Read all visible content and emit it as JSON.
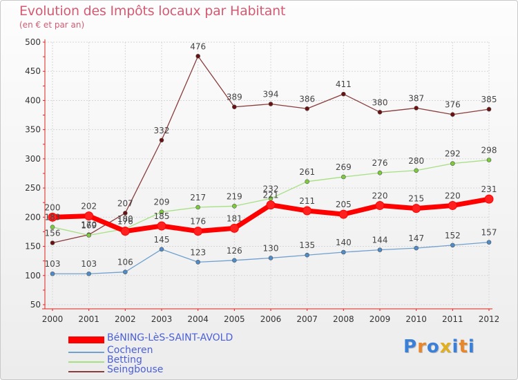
{
  "header": {
    "title": "Evolution des Impôts locaux par Habitant",
    "subtitle": "(en € et par an)"
  },
  "logo": {
    "letters": [
      "P",
      "r",
      "o",
      "x",
      "i",
      "t",
      "i"
    ],
    "colors": [
      "#3a7fd8",
      "#e8872a",
      "#3a7fd8",
      "#e0b020",
      "#3a7fd8",
      "#e8872a",
      "#3a7fd8"
    ]
  },
  "chart_data": {
    "type": "line",
    "x": [
      "2000",
      "2001",
      "2002",
      "2003",
      "2004",
      "2005",
      "2006",
      "2007",
      "2008",
      "2009",
      "2010",
      "2011",
      "2012"
    ],
    "ylim": [
      50,
      500
    ],
    "yticks": [
      "50",
      "100",
      "150",
      "200",
      "250",
      "300",
      "350",
      "400",
      "450",
      "500"
    ],
    "grid": true,
    "legend_position": "bottom-left",
    "series": [
      {
        "name": "BéNING-LèS-SAINT-AVOLD",
        "color": "#ff0000",
        "marker_color": "#ff2020",
        "values": [
          200,
          202,
          176,
          185,
          176,
          181,
          221,
          211,
          205,
          220,
          215,
          220,
          231
        ],
        "labels": [
          "200",
          "202",
          "176",
          "185",
          "176",
          "181",
          "221",
          "211",
          "205",
          "220",
          "215",
          "220",
          "231"
        ]
      },
      {
        "name": "Cocheren",
        "color": "#6fa0cf",
        "marker_color": "#4d8cc8",
        "values": [
          103,
          103,
          106,
          145,
          123,
          126,
          130,
          135,
          140,
          144,
          147,
          152,
          157
        ],
        "labels": [
          "103",
          "103",
          "106",
          "145",
          "123",
          "126",
          "130",
          "135",
          "140",
          "144",
          "147",
          "152",
          "157"
        ]
      },
      {
        "name": "Betting",
        "color": "#a6df82",
        "marker_color": "#7ccc3c",
        "values": [
          183,
          169,
          180,
          209,
          217,
          219,
          232,
          261,
          269,
          276,
          280,
          292,
          298
        ],
        "labels": [
          "183",
          "169",
          "180",
          "209",
          "217",
          "219",
          "232",
          "261",
          "269",
          "276",
          "280",
          "292",
          "298"
        ]
      },
      {
        "name": "Seingbouse",
        "color": "#8a3b3b",
        "marker_color": "#6a1010",
        "values": [
          156,
          170,
          207,
          332,
          476,
          389,
          394,
          386,
          411,
          380,
          387,
          376,
          385
        ],
        "labels": [
          "156",
          "170",
          "207",
          "332",
          "476",
          "389",
          "394",
          "386",
          "411",
          "380",
          "387",
          "376",
          "385"
        ]
      }
    ]
  }
}
